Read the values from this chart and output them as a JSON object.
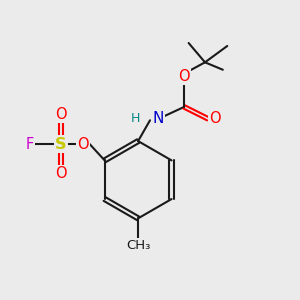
{
  "bg_color": "#ebebeb",
  "bond_color": "#1a1a1a",
  "colors": {
    "O": "#ff0000",
    "N": "#0000cc",
    "S": "#c8c800",
    "F": "#cc00cc",
    "H": "#008888",
    "C": "#1a1a1a"
  },
  "font_size": 9.5
}
